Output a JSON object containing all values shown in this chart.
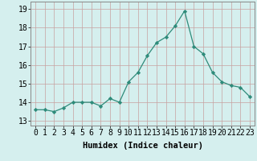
{
  "x": [
    0,
    1,
    2,
    3,
    4,
    5,
    6,
    7,
    8,
    9,
    10,
    11,
    12,
    13,
    14,
    15,
    16,
    17,
    18,
    19,
    20,
    21,
    22,
    23
  ],
  "y": [
    13.6,
    13.6,
    13.5,
    13.7,
    14.0,
    14.0,
    14.0,
    13.8,
    14.2,
    14.0,
    15.1,
    15.6,
    16.5,
    17.2,
    17.5,
    18.1,
    18.9,
    17.0,
    16.6,
    15.6,
    15.1,
    14.9,
    14.8,
    14.3
  ],
  "line_color": "#2e8b7a",
  "marker": "D",
  "marker_size": 2.2,
  "bg_color": "#d5efee",
  "grid_color": "#c8a0a0",
  "xlabel": "Humidex (Indice chaleur)",
  "ylabel_ticks": [
    13,
    14,
    15,
    16,
    17,
    18,
    19
  ],
  "xlim": [
    -0.5,
    23.5
  ],
  "ylim": [
    12.75,
    19.4
  ],
  "xlabel_fontsize": 7.5,
  "tick_fontsize": 7.0
}
